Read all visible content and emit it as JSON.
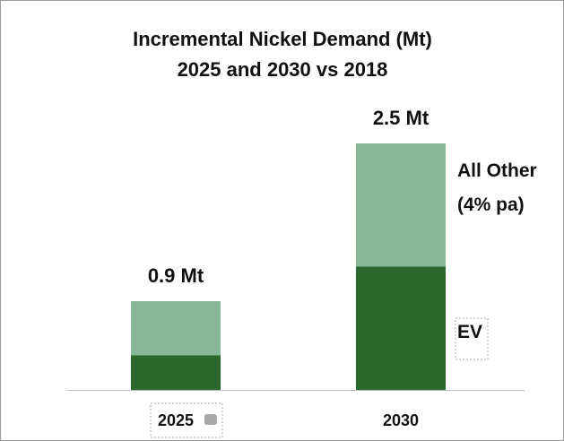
{
  "chart_data": {
    "type": "stacked_bar",
    "title": "Incremental Nickel Demand (Mt)",
    "subtitle": "2025 and 2030 vs 2018",
    "categories": [
      "2025",
      "2030"
    ],
    "series": [
      {
        "name": "EV",
        "color": "#2c682e",
        "values": [
          0.35,
          1.25
        ]
      },
      {
        "name": "All Other (4% pa)",
        "color": "#86b898",
        "values": [
          0.55,
          1.25
        ]
      }
    ],
    "totals": [
      0.9,
      2.5
    ],
    "total_labels": [
      "0.9 Mt",
      "2.5 Mt"
    ]
  }
}
